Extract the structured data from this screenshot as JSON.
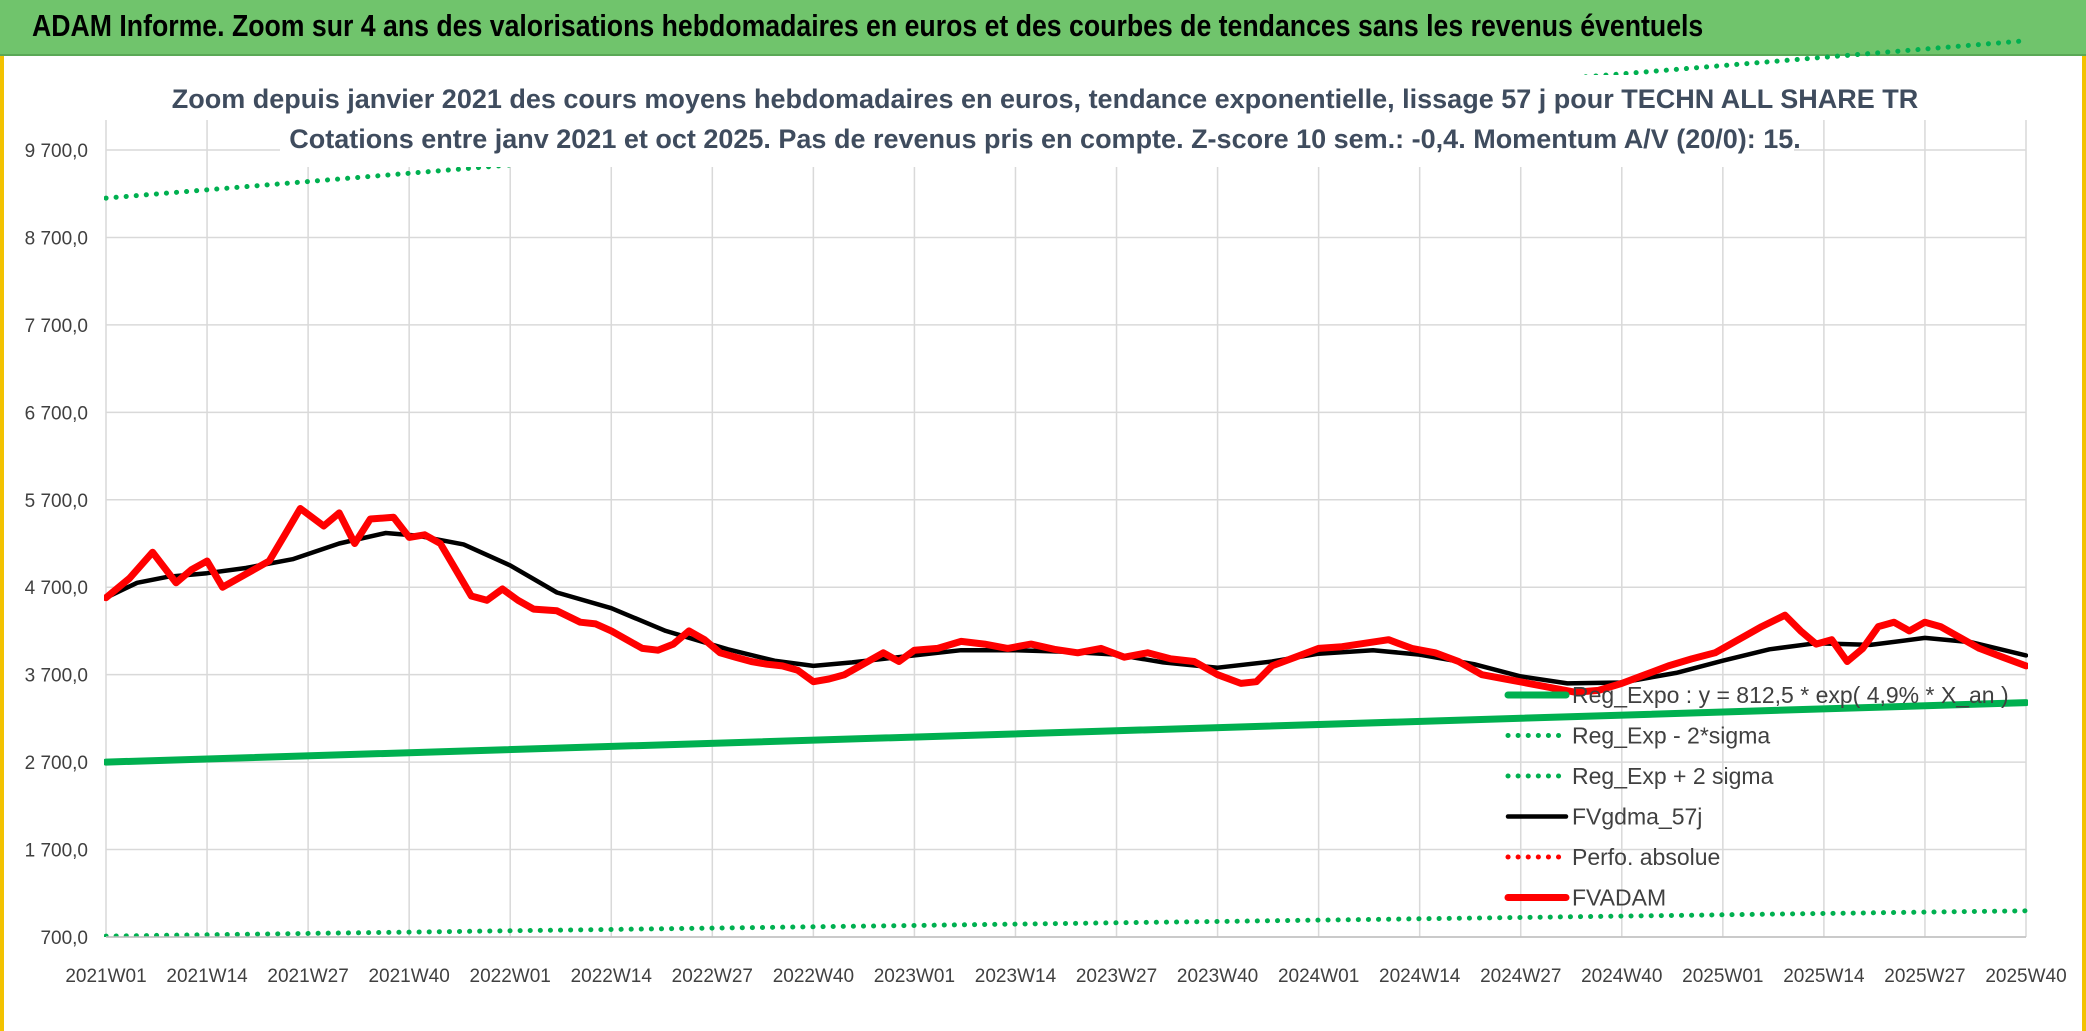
{
  "header": {
    "title": "ADAM Informe. Zoom sur 4 ans des valorisations hebdomadaires en euros et des courbes de tendances sans les revenus éventuels"
  },
  "colors": {
    "header_bg": "#70c46c",
    "trend_green": "#00b050",
    "smooth_black": "#000000",
    "price_red": "#ff0000",
    "frame_yellow": "#f2c200"
  },
  "chart_data": {
    "type": "line",
    "title": [
      "Zoom depuis janvier 2021 des cours moyens hebdomadaires en euros, tendance exponentielle, lissage 57 j pour TECHN ALL SHARE TR",
      "Cotations entre janv 2021 et oct 2025. Pas de revenus pris en compte. Z-score 10 sem.: -0,4. Momentum A/V (20/0): 15."
    ],
    "xlabel": "",
    "ylabel": "",
    "ylim": [
      700,
      10000
    ],
    "y_ticks": [
      700,
      1700,
      2700,
      3700,
      4700,
      5700,
      6700,
      7700,
      8700,
      9700
    ],
    "y_tick_labels": [
      "700,0",
      "1 700,0",
      "2 700,0",
      "3 700,0",
      "4 700,0",
      "5 700,0",
      "6 700,0",
      "7 700,0",
      "8 700,0",
      "9 700,0"
    ],
    "x_tick_labels": [
      "2021W01",
      "2021W14",
      "2021W27",
      "2021W40",
      "2022W01",
      "2022W14",
      "2022W27",
      "2022W40",
      "2023W01",
      "2023W14",
      "2023W27",
      "2023W40",
      "2024W01",
      "2024W14",
      "2024W27",
      "2024W40",
      "2025W01",
      "2025W14",
      "2025W27",
      "2025W40"
    ],
    "x_tick_index": [
      0,
      13,
      26,
      39,
      52,
      65,
      78,
      91,
      104,
      117,
      130,
      143,
      156,
      169,
      182,
      195,
      208,
      221,
      234,
      247
    ],
    "grid": true,
    "legend_position": "bottom-right",
    "series": [
      {
        "name": "Reg_Expo : y = 812,5 * exp( 4,9% *  X_an )",
        "style": "solid-thick",
        "color": "#00b050",
        "x": [
          0,
          247
        ],
        "values": [
          2700,
          3380
        ]
      },
      {
        "name": "Reg_Exp - 2*sigma",
        "style": "dotted",
        "color": "#00b050",
        "x": [
          0,
          247
        ],
        "values": [
          710,
          1000
        ]
      },
      {
        "name": "Reg_Exp + 2 sigma",
        "style": "dotted",
        "color": "#00b050",
        "x": [
          0,
          247
        ],
        "values": [
          9150,
          10950
        ]
      },
      {
        "name": "FVgdma_57j",
        "style": "solid",
        "color": "#000000",
        "x": [
          0,
          4,
          8,
          13,
          18,
          24,
          30,
          36,
          40,
          46,
          52,
          58,
          65,
          72,
          80,
          86,
          91,
          96,
          104,
          110,
          117,
          124,
          130,
          136,
          143,
          150,
          156,
          163,
          169,
          176,
          182,
          188,
          195,
          202,
          208,
          214,
          220,
          227,
          234,
          240,
          247
        ],
        "values": [
          4580,
          4750,
          4820,
          4860,
          4920,
          5020,
          5200,
          5320,
          5290,
          5190,
          4950,
          4640,
          4460,
          4200,
          3990,
          3860,
          3800,
          3840,
          3920,
          3980,
          3980,
          3960,
          3930,
          3840,
          3780,
          3850,
          3940,
          3980,
          3930,
          3820,
          3680,
          3600,
          3610,
          3720,
          3860,
          3990,
          4060,
          4040,
          4120,
          4070,
          3920
        ]
      },
      {
        "name": "Perfo. absolue",
        "style": "dotted",
        "color": "#ff0000",
        "x": [],
        "values": []
      },
      {
        "name": "FVADAM",
        "style": "solid-thick",
        "color": "#ff0000",
        "x": [
          0,
          3,
          6,
          9,
          11,
          13,
          15,
          18,
          21,
          23,
          25,
          28,
          30,
          32,
          34,
          37,
          39,
          41,
          43,
          45,
          47,
          49,
          51,
          53,
          55,
          58,
          61,
          63,
          65,
          67,
          69,
          71,
          73,
          75,
          77,
          79,
          81,
          83,
          85,
          87,
          89,
          91,
          93,
          95,
          97,
          100,
          102,
          104,
          107,
          110,
          113,
          116,
          119,
          122,
          125,
          128,
          131,
          134,
          137,
          140,
          143,
          146,
          148,
          150,
          153,
          156,
          159,
          162,
          165,
          168,
          171,
          174,
          177,
          180,
          183,
          186,
          189,
          192,
          195,
          198,
          201,
          204,
          207,
          210,
          213,
          216,
          218,
          220,
          222,
          224,
          226,
          228,
          230,
          232,
          234,
          236,
          238,
          241,
          244,
          247
        ],
        "values": [
          4580,
          4800,
          5100,
          4750,
          4900,
          5000,
          4700,
          4850,
          5000,
          5300,
          5600,
          5400,
          5550,
          5200,
          5480,
          5500,
          5270,
          5300,
          5200,
          4900,
          4600,
          4550,
          4680,
          4550,
          4450,
          4430,
          4300,
          4280,
          4200,
          4100,
          4000,
          3980,
          4050,
          4200,
          4100,
          3950,
          3900,
          3850,
          3820,
          3800,
          3750,
          3620,
          3650,
          3700,
          3800,
          3950,
          3850,
          3980,
          4000,
          4080,
          4050,
          4000,
          4050,
          3990,
          3950,
          4000,
          3900,
          3950,
          3880,
          3850,
          3700,
          3600,
          3620,
          3800,
          3900,
          4000,
          4020,
          4060,
          4100,
          4000,
          3950,
          3850,
          3700,
          3650,
          3600,
          3550,
          3500,
          3520,
          3600,
          3700,
          3800,
          3880,
          3950,
          4100,
          4250,
          4380,
          4200,
          4050,
          4100,
          3850,
          4000,
          4250,
          4300,
          4200,
          4300,
          4250,
          4150,
          4000,
          3900,
          3800
        ]
      }
    ]
  }
}
